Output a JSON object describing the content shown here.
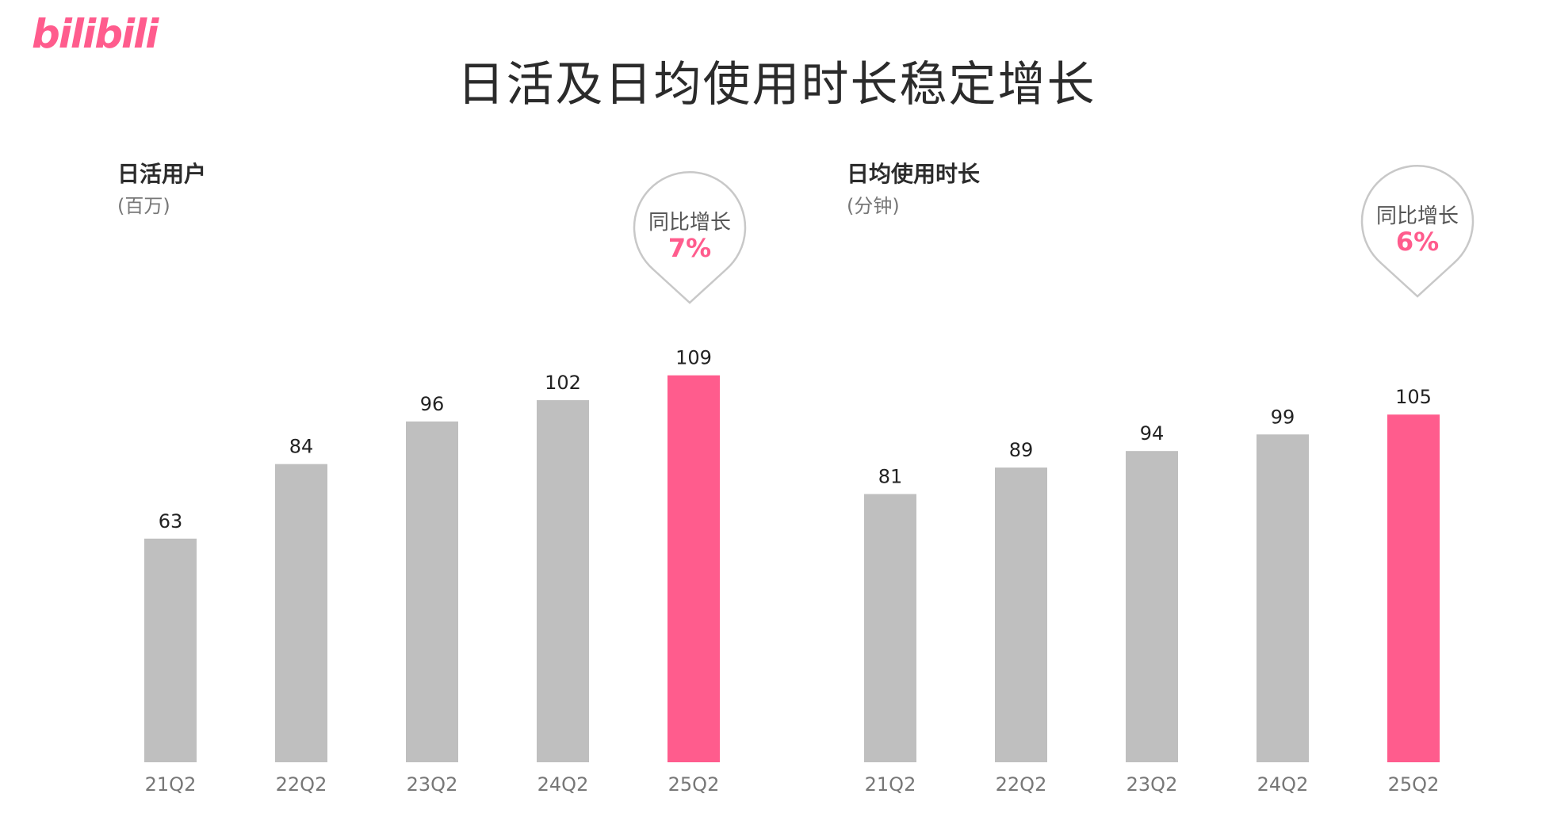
{
  "logo": {
    "text": "bilibili"
  },
  "page": {
    "title": "日活及日均使用时长稳定增长"
  },
  "colors": {
    "bar": "#bfbfbf",
    "highlight": "#ff5c8d",
    "bubble_border": "#c8c8c8"
  },
  "chart_data": [
    {
      "type": "bar",
      "title": "日活用户",
      "unit": "(百万)",
      "categories": [
        "21Q2",
        "22Q2",
        "23Q2",
        "24Q2",
        "25Q2"
      ],
      "values": [
        63,
        84,
        96,
        102,
        109
      ],
      "highlight_index": 4,
      "ylim": [
        0,
        125
      ],
      "grid": false,
      "annotation": {
        "label": "同比增长",
        "value": "7%"
      }
    },
    {
      "type": "bar",
      "title": "日均使用时长",
      "unit": "(分钟)",
      "categories": [
        "21Q2",
        "22Q2",
        "23Q2",
        "24Q2",
        "25Q2"
      ],
      "values": [
        81,
        89,
        94,
        99,
        105
      ],
      "highlight_index": 4,
      "ylim": [
        0,
        134
      ],
      "grid": false,
      "annotation": {
        "label": "同比增长",
        "value": "6%"
      }
    }
  ]
}
